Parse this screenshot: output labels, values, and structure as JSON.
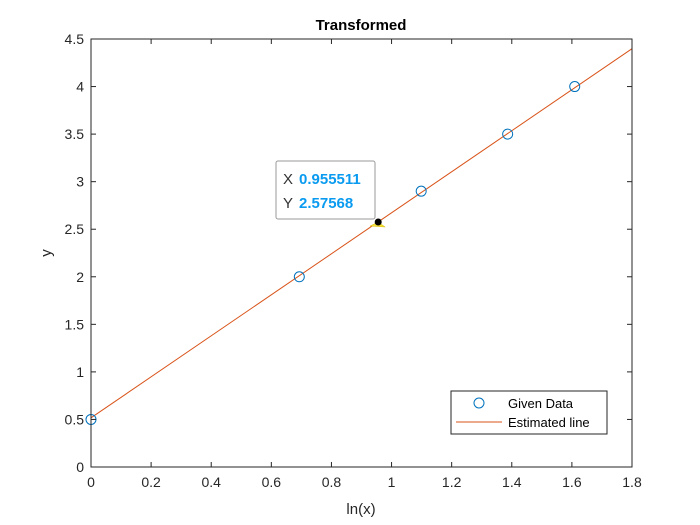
{
  "chart_data": {
    "type": "scatter",
    "title": "Transformed",
    "xlabel": "ln(x)",
    "ylabel": "y",
    "xlim": [
      0,
      1.8
    ],
    "ylim": [
      0,
      4.5
    ],
    "xticks": [
      0,
      0.2,
      0.4,
      0.6,
      0.8,
      1,
      1.2,
      1.4,
      1.6,
      1.8
    ],
    "xtick_labels": [
      "0",
      "0.2",
      "0.4",
      "0.6",
      "0.8",
      "1",
      "1.2",
      "1.4",
      "1.6",
      "1.8"
    ],
    "yticks": [
      0,
      0.5,
      1,
      1.5,
      2,
      2.5,
      3,
      3.5,
      4,
      4.5
    ],
    "ytick_labels": [
      "0",
      "0.5",
      "1",
      "1.5",
      "2",
      "2.5",
      "3",
      "3.5",
      "4",
      "4.5"
    ],
    "grid": false,
    "legend_position": "bottom-right",
    "series": [
      {
        "name": "Given Data",
        "kind": "markers",
        "marker": "circle",
        "color": "#0072bd",
        "x": [
          0,
          0.6931,
          1.0986,
          1.3863,
          1.6094
        ],
        "y": [
          0.5,
          2.0,
          2.9,
          3.5,
          4.0
        ]
      },
      {
        "name": "Estimated line",
        "kind": "line",
        "color": "#d95319",
        "x": [
          0,
          1.8
        ],
        "y": [
          0.517,
          4.398
        ]
      }
    ],
    "datatip": {
      "x": 0.955511,
      "y": 2.57568,
      "x_key": "X",
      "y_key": "Y",
      "x_text": "0.955511",
      "y_text": "2.57568"
    }
  }
}
